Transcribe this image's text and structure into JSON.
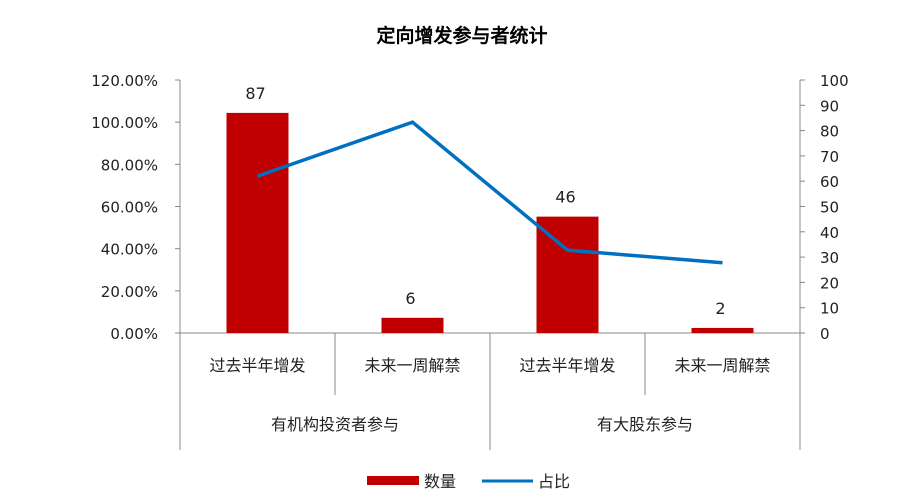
{
  "chart_data": {
    "type": "bar+line",
    "title": "定向增发参与者统计",
    "ylabel_left": "占比",
    "ylabel_right": "数量",
    "categories": [
      "过去半年增发",
      "未来一周解禁",
      "过去半年增发",
      "未来一周解禁"
    ],
    "groups": [
      {
        "label": "有机构投资者参与",
        "span": 2
      },
      {
        "label": "有大股东参与",
        "span": 2
      }
    ],
    "series": [
      {
        "name": "数量",
        "type": "bar",
        "axis": "right",
        "color": "#C00000",
        "values": [
          87,
          6,
          46,
          2
        ],
        "data_labels": [
          "87",
          "6",
          "46",
          "2"
        ]
      },
      {
        "name": "占比",
        "type": "line",
        "axis": "left",
        "color": "#0070C0",
        "values": [
          74.4,
          100,
          39.3,
          33.3
        ]
      }
    ],
    "ylim_left": [
      0,
      120
    ],
    "yticks_left": [
      "0.00%",
      "20.00%",
      "40.00%",
      "60.00%",
      "80.00%",
      "100.00%",
      "120.00%"
    ],
    "ylim_right": [
      0,
      100
    ],
    "yticks_right": [
      "0",
      "10",
      "20",
      "30",
      "40",
      "50",
      "60",
      "70",
      "80",
      "90",
      "100"
    ],
    "grid": false,
    "legend": "bottom"
  }
}
